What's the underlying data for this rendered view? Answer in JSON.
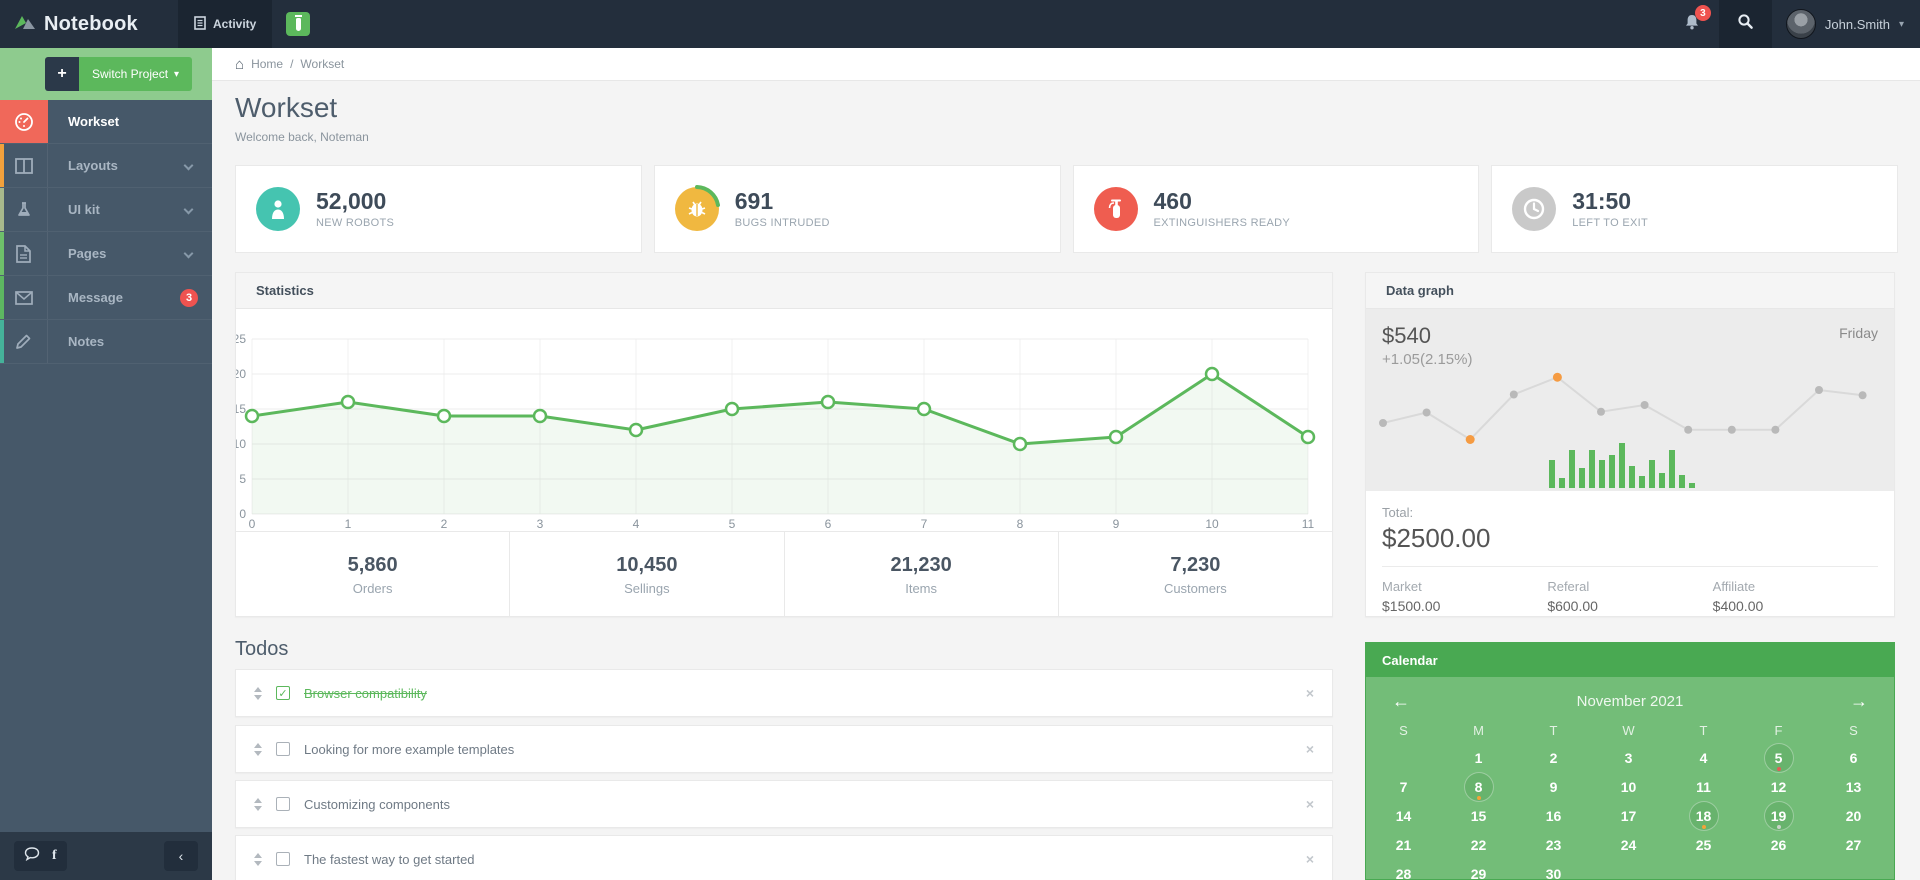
{
  "topbar": {
    "brand": "Notebook",
    "activity_label": "Activity",
    "bell_badge": "3",
    "user_name": "John.Smith"
  },
  "sidebar": {
    "switch_project_label": "Switch Project",
    "items": [
      {
        "label": "Workset",
        "active": true,
        "strip": "#f0685a"
      },
      {
        "label": "Layouts",
        "strip": "#f2a13c",
        "expandable": true
      },
      {
        "label": "UI kit",
        "strip": "#a8b98c",
        "expandable": true
      },
      {
        "label": "Pages",
        "strip": "#6ec06a",
        "expandable": true
      },
      {
        "label": "Message",
        "strip": "#5db761",
        "badge": "3"
      },
      {
        "label": "Notes",
        "strip": "#45b29a"
      }
    ]
  },
  "breadcrumb": {
    "home": "Home",
    "separator": "/",
    "current": "Workset"
  },
  "page": {
    "title": "Workset",
    "subtitle": "Welcome back, Noteman"
  },
  "cards": [
    {
      "value": "52,000",
      "label": "NEW ROBOTS",
      "color": "#45c4b0",
      "icon": "robot-icon"
    },
    {
      "value": "691",
      "label": "BUGS INTRUDED",
      "color": "#f0b840",
      "icon": "bug-icon"
    },
    {
      "value": "460",
      "label": "EXTINGUISHERS READY",
      "color": "#ef5d50",
      "icon": "extinguisher-icon"
    },
    {
      "value": "31:50",
      "label": "LEFT TO EXIT",
      "color": "#c9c9c9",
      "icon": "clock-icon"
    }
  ],
  "statistics": {
    "title": "Statistics",
    "chart_data": {
      "type": "line",
      "x": [
        0,
        1,
        2,
        3,
        4,
        5,
        6,
        7,
        8,
        9,
        10,
        11
      ],
      "values": [
        14,
        16,
        14,
        14,
        12,
        15,
        16,
        15,
        10,
        11,
        20,
        11
      ],
      "ylim": [
        0,
        25
      ],
      "yticks": [
        0,
        5,
        10,
        15,
        20,
        25
      ],
      "line_color": "#5cb85c",
      "fill_color": "rgba(92,184,92,0.08)",
      "grid": true
    },
    "footer": [
      {
        "value": "5,860",
        "label": "Orders"
      },
      {
        "value": "10,450",
        "label": "Sellings"
      },
      {
        "value": "21,230",
        "label": "Items"
      },
      {
        "value": "7,230",
        "label": "Customers"
      }
    ]
  },
  "datagraph": {
    "title": "Data graph",
    "amount": "$540",
    "change": "+1.05(2.15%)",
    "day": "Friday",
    "spark": {
      "type": "line",
      "values": [
        32,
        46,
        10,
        70,
        93,
        47,
        56,
        23,
        23,
        23,
        76,
        69
      ],
      "orange_indexes": [
        2,
        4
      ],
      "line_color": "#d9d9d9",
      "dot_color": "#b9b9b9",
      "highlight_color": "#f59b42"
    },
    "bars": {
      "type": "bar",
      "heights": [
        28,
        10,
        38,
        20,
        38,
        28,
        33,
        45,
        22,
        12,
        28,
        15,
        38,
        13,
        5
      ],
      "color": "#5cb85c"
    },
    "total_label": "Total:",
    "total": "$2500.00",
    "breakdown": [
      {
        "label": "Market",
        "value": "$1500.00"
      },
      {
        "label": "Referal",
        "value": "$600.00"
      },
      {
        "label": "Affiliate",
        "value": "$400.00"
      }
    ]
  },
  "todos": {
    "title": "Todos",
    "items": [
      {
        "label": "Browser compatibility",
        "done": true
      },
      {
        "label": "Looking for more example templates",
        "done": false
      },
      {
        "label": "Customizing components",
        "done": false
      },
      {
        "label": "The fastest way to get started",
        "done": false
      }
    ]
  },
  "calendar": {
    "title": "Calendar",
    "month": "November 2021",
    "prev_arrow": "←",
    "next_arrow": "→",
    "day_headers": [
      "S",
      "M",
      "T",
      "W",
      "T",
      "F",
      "S"
    ],
    "weeks": [
      [
        "",
        "1",
        "2",
        "3",
        "4",
        "5",
        "6"
      ],
      [
        "7",
        "8",
        "9",
        "10",
        "11",
        "12",
        "13"
      ],
      [
        "14",
        "15",
        "16",
        "17",
        "18",
        "19",
        "20"
      ],
      [
        "21",
        "22",
        "23",
        "24",
        "25",
        "26",
        "27"
      ],
      [
        "28",
        "29",
        "30",
        "",
        "",
        "",
        ""
      ]
    ],
    "events": [
      {
        "date": "5",
        "dot": "#e05f59"
      },
      {
        "date": "8",
        "dot": "#f3a33a"
      },
      {
        "date": "18",
        "dot": "#f3a33a"
      },
      {
        "date": "19",
        "dot": "#c8d4c8"
      }
    ]
  }
}
